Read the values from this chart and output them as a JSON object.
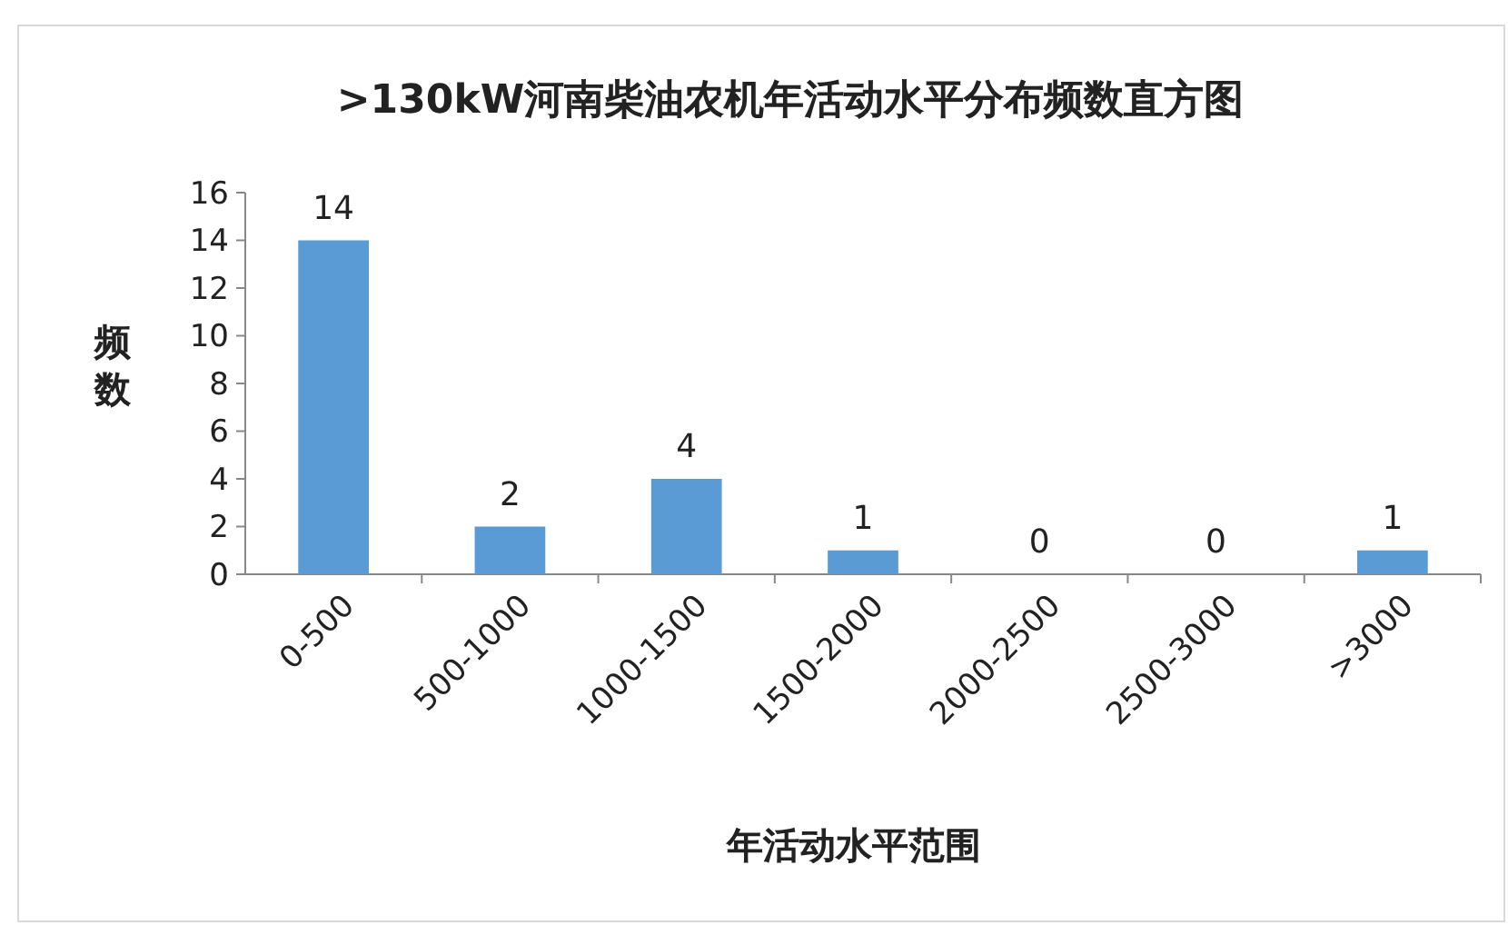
{
  "chart_data": {
    "type": "bar",
    "title": ">130kW河南柴油农机年活动水平分布频数直方图",
    "xlabel": "年活动水平范围",
    "ylabel": "频数",
    "categories": [
      "0-500",
      "500-1000",
      "1000-1500",
      "1500-2000",
      "2000-2500",
      "2500-3000",
      ">3000"
    ],
    "values": [
      14,
      2,
      4,
      1,
      0,
      0,
      1
    ],
    "color": "#5b9bd5",
    "ylim": [
      0,
      16
    ],
    "yticks": [
      0,
      2,
      4,
      6,
      8,
      10,
      12,
      14,
      16
    ],
    "data_labels": true
  }
}
